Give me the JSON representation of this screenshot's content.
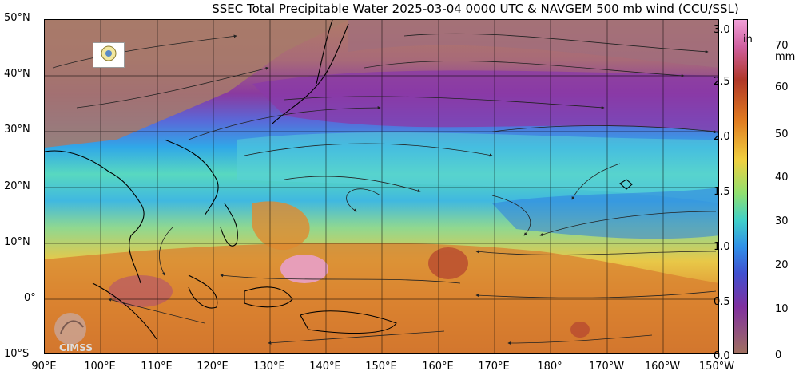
{
  "title": "SSEC Total Precipitable Water  2025-03-04 0000 UTC & NAVGEM 500 mb wind (CCU/SSL)",
  "lat_labels": [
    "50°N",
    "40°N",
    "30°N",
    "20°N",
    "10°N",
    "0°",
    "10°S"
  ],
  "lon_labels": [
    "90°E",
    "100°E",
    "110°E",
    "120°E",
    "130°E",
    "140°E",
    "150°E",
    "160°E",
    "170°E",
    "180°",
    "170°W",
    "160°W",
    "150°W"
  ],
  "colorbar": {
    "unit_in": "in",
    "unit_mm": "mm",
    "in_ticks": [
      "3.0",
      "2.5",
      "2.0",
      "1.5",
      "1.0",
      "0.5",
      "0.0"
    ],
    "mm_ticks": [
      "70",
      "60",
      "50",
      "40",
      "30",
      "20",
      "10",
      "0"
    ],
    "colors": [
      "#a07060",
      "#d88078",
      "#b84a30",
      "#e08a30",
      "#f0c040",
      "#a8e070",
      "#40c0c0",
      "#3080e0",
      "#7040b0",
      "#d060d0",
      "#f08ac0"
    ]
  },
  "logo_text": "CIMSS"
}
